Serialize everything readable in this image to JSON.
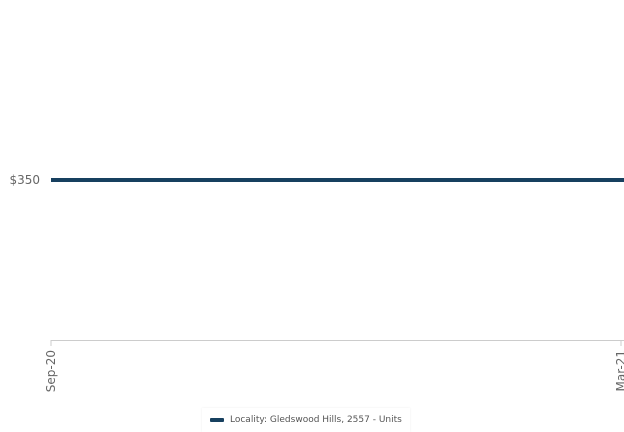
{
  "chart_data": {
    "type": "line",
    "x": [
      "Sep-20",
      "Mar-21"
    ],
    "series": [
      {
        "name": "Locality: Gledswood Hills, 2557 - Units",
        "values": [
          350,
          350
        ],
        "color": "#17405f"
      }
    ],
    "y_tick_labels": [
      {
        "value": 350,
        "label": "$350"
      }
    ],
    "y_unit": "$",
    "grid": false,
    "legend_position": "bottom-center"
  }
}
